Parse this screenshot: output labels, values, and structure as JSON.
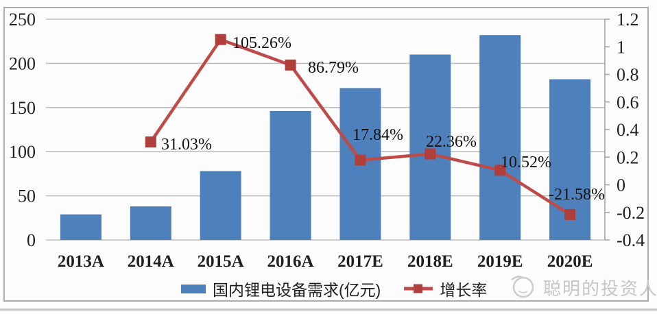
{
  "chart_data": {
    "type": "bar",
    "subtype": "combo-bar-line-dual-axis",
    "categories": [
      "2013A",
      "2014A",
      "2015A",
      "2016A",
      "2017E",
      "2018E",
      "2019E",
      "2020E"
    ],
    "series": [
      {
        "name": "国内锂电设备需求(亿元)",
        "type": "bar",
        "axis": "left",
        "color": "#4e81bc",
        "values": [
          29,
          38,
          78,
          146,
          172,
          210,
          232,
          182
        ]
      },
      {
        "name": "增长率",
        "type": "line",
        "axis": "right",
        "color": "#be4b48",
        "marker_color": "#b03f3c",
        "values": [
          null,
          0.3103,
          1.0526,
          0.8679,
          0.1784,
          0.2236,
          0.1052,
          -0.2158
        ],
        "point_labels": [
          null,
          "31.03%",
          "105.26%",
          "86.79%",
          "17.84%",
          "22.36%",
          "10.52%",
          "-21.58%"
        ]
      }
    ],
    "left_axis": {
      "min": 0,
      "max": 250,
      "ticks": [
        "250",
        "200",
        "150",
        "100",
        "50",
        "0"
      ]
    },
    "right_axis": {
      "min": -0.4,
      "max": 1.2,
      "ticks": [
        "1.2",
        "1",
        "0.8",
        "0.6",
        "0.4",
        "0.2",
        "0",
        "-0.2",
        "-0.4"
      ]
    },
    "grid": true,
    "legend_position": "bottom",
    "title": "",
    "xlabel": "",
    "ylabel": ""
  },
  "legend": {
    "bar_label": "国内锂电设备需求(亿元)",
    "line_label": "增长率"
  },
  "watermark": {
    "text": "聪明的投资人"
  },
  "colors": {
    "bar": "#4e81bc",
    "line": "#be4b48",
    "marker": "#b03f3c",
    "gridline": "#bfbfbf",
    "axis_text": "#1f1f1f",
    "frame": "#adadad",
    "watermark": "#c6c6c6"
  }
}
